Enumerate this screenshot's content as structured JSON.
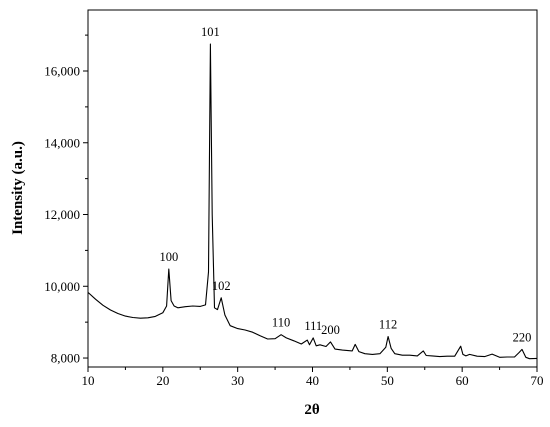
{
  "chart_data": {
    "type": "line",
    "title": "",
    "xlabel": "2θ",
    "ylabel": "Intensity (a.u.)",
    "xlim": [
      10,
      70
    ],
    "ylim": [
      7750,
      17700
    ],
    "x_ticks": [
      10,
      20,
      30,
      40,
      50,
      60,
      70
    ],
    "x_tick_labels": [
      "10",
      "20",
      "30",
      "40",
      "50",
      "60",
      "70"
    ],
    "y_ticks": [
      8000,
      10000,
      12000,
      14000,
      16000
    ],
    "y_tick_labels": [
      "8,000",
      "10,000",
      "12,000",
      "14,000",
      "16,000"
    ],
    "grid": false,
    "series": [
      {
        "color": "#000000",
        "x": [
          10,
          11,
          12,
          13,
          14,
          15,
          16,
          17,
          18,
          19,
          20,
          20.5,
          20.8,
          21.1,
          21.5,
          22,
          23,
          24,
          25,
          25.7,
          26.1,
          26.35,
          26.6,
          26.9,
          27.3,
          27.8,
          28.3,
          29,
          30,
          31,
          32,
          33,
          34,
          35,
          35.8,
          36.5,
          37.5,
          38.5,
          39.3,
          39.6,
          40.1,
          40.5,
          41,
          41.8,
          42.4,
          43,
          44,
          45.3,
          45.7,
          46.2,
          47,
          48,
          49,
          49.8,
          50.1,
          50.5,
          51,
          52,
          53,
          54,
          54.8,
          55.2,
          56,
          57,
          58,
          59,
          59.8,
          60.1,
          60.5,
          61,
          62,
          63,
          64,
          65,
          66,
          67,
          67.6,
          68,
          68.5,
          69,
          70
        ],
        "values": [
          9830,
          9640,
          9470,
          9340,
          9240,
          9170,
          9130,
          9110,
          9120,
          9160,
          9260,
          9450,
          10480,
          9600,
          9450,
          9400,
          9430,
          9450,
          9440,
          9480,
          10400,
          16750,
          12000,
          9400,
          9350,
          9680,
          9200,
          8900,
          8820,
          8780,
          8720,
          8620,
          8530,
          8540,
          8650,
          8560,
          8480,
          8390,
          8500,
          8370,
          8560,
          8340,
          8370,
          8320,
          8450,
          8250,
          8220,
          8200,
          8380,
          8180,
          8120,
          8100,
          8120,
          8300,
          8600,
          8270,
          8120,
          8080,
          8080,
          8060,
          8200,
          8070,
          8060,
          8040,
          8050,
          8050,
          8330,
          8100,
          8060,
          8100,
          8050,
          8040,
          8110,
          8020,
          8030,
          8030,
          8150,
          8240,
          8020,
          7980,
          7990
        ]
      }
    ],
    "annotations": [
      {
        "text": "100",
        "x": 20.8,
        "y": 10480
      },
      {
        "text": "101",
        "x": 26.35,
        "y": 16750
      },
      {
        "text": "102",
        "x": 27.8,
        "y": 9680
      },
      {
        "text": "110",
        "x": 35.8,
        "y": 8650
      },
      {
        "text": "111",
        "x": 40.1,
        "y": 8560
      },
      {
        "text": "200",
        "x": 42.4,
        "y": 8450
      },
      {
        "text": "112",
        "x": 50.1,
        "y": 8600
      },
      {
        "text": "220",
        "x": 68,
        "y": 8240
      }
    ]
  }
}
